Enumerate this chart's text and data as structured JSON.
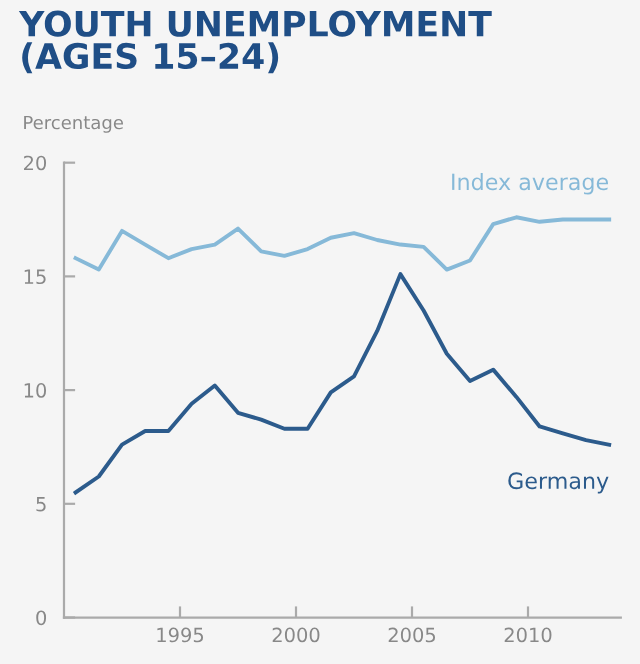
{
  "chart_data": {
    "type": "line",
    "title": "YOUTH UNEMPLOYMENT\n(AGES 15–24)",
    "ylabel": "Percentage",
    "x": [
      1990.5,
      1991.5,
      1992.5,
      1993.5,
      1994.5,
      1995.5,
      1996.5,
      1997.5,
      1998.5,
      1999.5,
      2000.5,
      2001.5,
      2002.5,
      2003.5,
      2004.5,
      2005.5,
      2006.5,
      2007.5,
      2008.5,
      2009.5,
      2010.5,
      2011.5,
      2012.5,
      2013.5
    ],
    "series": [
      {
        "name": "Index average",
        "color": "#86b9d8",
        "values": [
          15.8,
          15.3,
          17.0,
          16.4,
          15.8,
          16.2,
          16.4,
          17.1,
          16.1,
          15.9,
          16.2,
          16.7,
          16.9,
          16.6,
          16.4,
          16.3,
          15.3,
          15.7,
          17.3,
          17.6,
          17.4,
          17.5,
          17.5,
          17.5
        ]
      },
      {
        "name": "Germany",
        "color": "#2c5b8c",
        "values": [
          5.5,
          6.2,
          7.6,
          8.2,
          8.2,
          9.4,
          10.2,
          9.0,
          8.7,
          8.3,
          8.3,
          9.9,
          10.6,
          12.6,
          15.1,
          13.5,
          11.6,
          10.4,
          10.9,
          9.7,
          8.4,
          8.1,
          7.8,
          7.6
        ]
      }
    ],
    "xlim": [
      1990,
      2014
    ],
    "xticks": [
      1995,
      2000,
      2005,
      2010
    ],
    "ylim": [
      0,
      20
    ],
    "yticks": [
      0,
      5,
      10,
      15,
      20
    ],
    "grid": false,
    "legend": false,
    "marker": "none",
    "line_style": "solid"
  }
}
